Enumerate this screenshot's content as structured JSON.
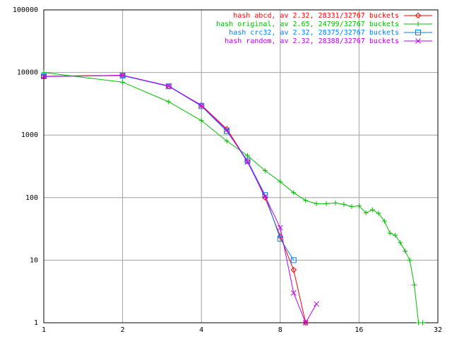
{
  "chart_data": {
    "type": "line",
    "xscale": "log",
    "yscale": "log",
    "xlim": [
      1,
      32
    ],
    "ylim": [
      1,
      100000
    ],
    "xticks": [
      1,
      2,
      4,
      8,
      16,
      32
    ],
    "yticks": [
      1,
      10,
      100,
      1000,
      10000,
      100000
    ],
    "grid": true,
    "legend": "top right",
    "series": [
      {
        "name": "hash abcd, av 2.32, 28331/32767 buckets",
        "color": "#ff0000",
        "marker": "diamond",
        "x": [
          1,
          2,
          3,
          4,
          5,
          6,
          7,
          8,
          9,
          10
        ],
        "values": [
          8700,
          9000,
          6000,
          3000,
          1250,
          380,
          100,
          24,
          7,
          1
        ]
      },
      {
        "name": "hash original, av 2.65, 24799/32767 buckets",
        "color": "#00c000",
        "marker": "plus",
        "x": [
          1,
          2,
          3,
          4,
          5,
          6,
          7,
          8,
          9,
          10,
          11,
          12,
          13,
          14,
          15,
          16,
          17,
          18,
          19,
          20,
          21,
          22,
          23,
          24,
          25,
          26,
          27,
          28
        ],
        "values": [
          10000,
          7000,
          3400,
          1700,
          800,
          470,
          270,
          180,
          120,
          90,
          80,
          80,
          82,
          78,
          72,
          74,
          57,
          64,
          56,
          42,
          27,
          25,
          19,
          14,
          10,
          4,
          1,
          1
        ]
      },
      {
        "name": "hash crc32, av 2.32, 28375/32767 buckets",
        "color": "#0080ff",
        "marker": "square",
        "x": [
          1,
          2,
          3,
          4,
          5,
          6,
          7,
          8,
          9
        ],
        "values": [
          8700,
          8900,
          6000,
          2900,
          1150,
          390,
          110,
          22,
          10
        ]
      },
      {
        "name": "hash random, av 2.32, 28388/32767 buckets",
        "color": "#c000ff",
        "marker": "cross",
        "x": [
          1,
          2,
          3,
          4,
          5,
          6,
          7,
          8,
          9,
          10,
          11
        ],
        "values": [
          8600,
          9000,
          6100,
          2950,
          1200,
          370,
          105,
          33,
          3,
          1,
          2
        ]
      }
    ]
  }
}
